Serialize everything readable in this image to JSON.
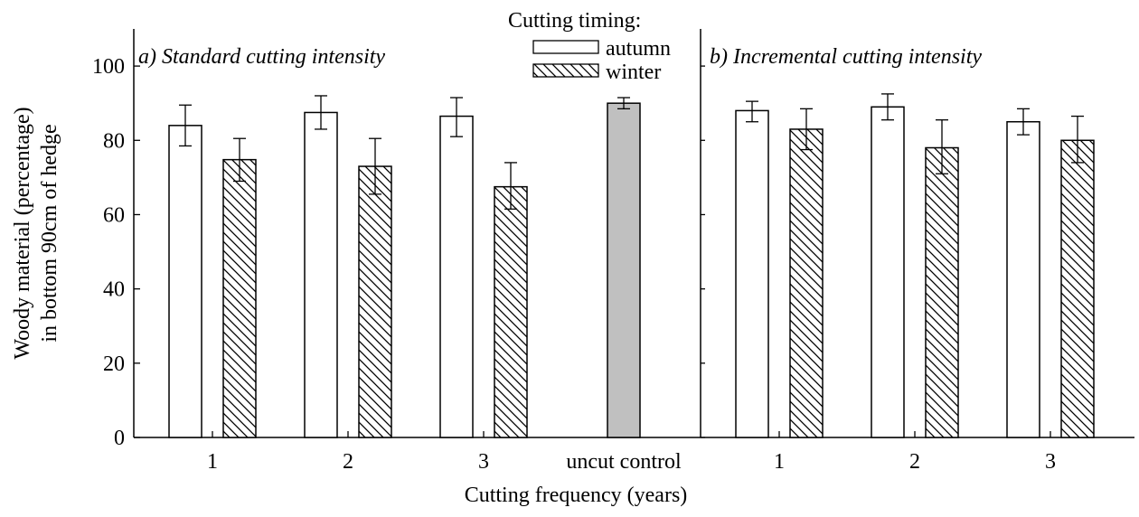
{
  "chart_data": {
    "type": "bar",
    "xlabel": "Cutting frequency (years)",
    "ylabel_lines": [
      "Woody material (percentage)",
      "in bottom 90cm of hedge"
    ],
    "ylim": [
      0,
      110
    ],
    "yticks": [
      0,
      20,
      40,
      60,
      80,
      100
    ],
    "grid": false,
    "legend": {
      "title": "Cutting timing:",
      "position": "top-center",
      "entries": [
        {
          "name": "autumn",
          "fill": "open"
        },
        {
          "name": "winter",
          "fill": "hatched"
        }
      ]
    },
    "panels": [
      {
        "title": "a) Standard cutting intensity",
        "categories": [
          "1",
          "2",
          "3"
        ],
        "series": [
          {
            "name": "autumn",
            "values": [
              84,
              87.5,
              86.5
            ],
            "err_low": [
              78.5,
              83,
              81
            ],
            "err_high": [
              89.5,
              92,
              91.5
            ]
          },
          {
            "name": "winter",
            "values": [
              74.8,
              73,
              67.5
            ],
            "err_low": [
              69,
              65.5,
              61.5
            ],
            "err_high": [
              80.5,
              80.5,
              74
            ]
          }
        ]
      },
      {
        "title": "",
        "categories": [
          "uncut control"
        ],
        "series": [
          {
            "name": "",
            "values": [
              90
            ],
            "err_low": [
              88.5
            ],
            "err_high": [
              91.5
            ],
            "color": "#c0c0c0"
          }
        ]
      },
      {
        "title": "b) Incremental cutting intensity",
        "categories": [
          "1",
          "2",
          "3"
        ],
        "series": [
          {
            "name": "autumn",
            "values": [
              88,
              89,
              85
            ],
            "err_low": [
              85,
              85.5,
              81.5
            ],
            "err_high": [
              90.5,
              92.5,
              88.5
            ]
          },
          {
            "name": "winter",
            "values": [
              83,
              78,
              80
            ],
            "err_low": [
              77.5,
              71,
              74
            ],
            "err_high": [
              88.5,
              85.5,
              86.5
            ]
          }
        ]
      }
    ]
  }
}
